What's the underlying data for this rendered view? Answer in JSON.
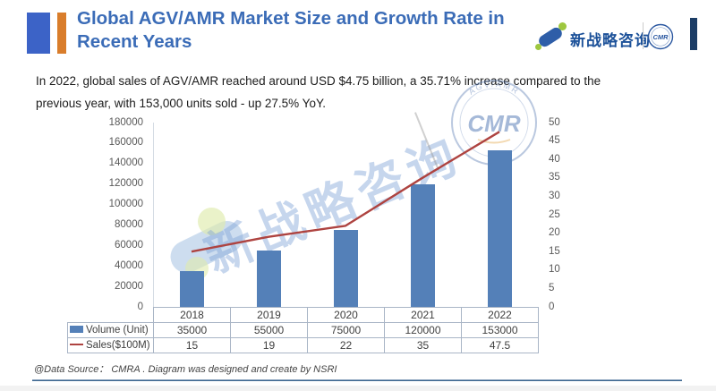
{
  "header": {
    "title_line1": "Global AGV/AMR Market Size and Growth Rate in",
    "title_line2": "Recent Years",
    "brand": {
      "name": "新战略咨询",
      "badge_text": "CMR"
    }
  },
  "subtitle": {
    "line1": "In 2022, global sales of AGV/AMR reached around USD $4.75 billion, a 35.71% increase compared to the",
    "line2": "previous year, with 153,000 units sold - up 27.5% YoY."
  },
  "chart_data": {
    "type": "bar",
    "categories": [
      "2018",
      "2019",
      "2020",
      "2021",
      "2022"
    ],
    "series": [
      {
        "name": "Volume (Unit)",
        "type": "bar",
        "axis": "left",
        "values": [
          35000,
          55000,
          75000,
          120000,
          153000
        ],
        "color": "#5480b8"
      },
      {
        "name": "Sales($100M)",
        "type": "line",
        "axis": "right",
        "values": [
          15,
          19,
          22,
          35,
          47.5
        ],
        "color": "#ae4340"
      }
    ],
    "left_axis": {
      "min": 0,
      "max": 180000,
      "step": 20000
    },
    "right_axis": {
      "min": 0,
      "max": 50,
      "step": 5
    },
    "gridlines": false,
    "legend_position": "table-left",
    "title": "Global AGV/AMR Market Size and Growth Rate in Recent Years",
    "xlabel": "",
    "ylabel": ""
  },
  "watermark": {
    "text": "新战略咨询",
    "stamp_text": "CMR",
    "stamp_arc": "AGV/AMR"
  },
  "footer": {
    "source": "@Data Source： CMRA . Diagram was designed and create by NSRI"
  },
  "colors": {
    "bar": "#5480b8",
    "line": "#ae4340",
    "title": "#3b6cb7",
    "accent_blue": "#3c63c7",
    "accent_orange": "#d97d2b"
  }
}
